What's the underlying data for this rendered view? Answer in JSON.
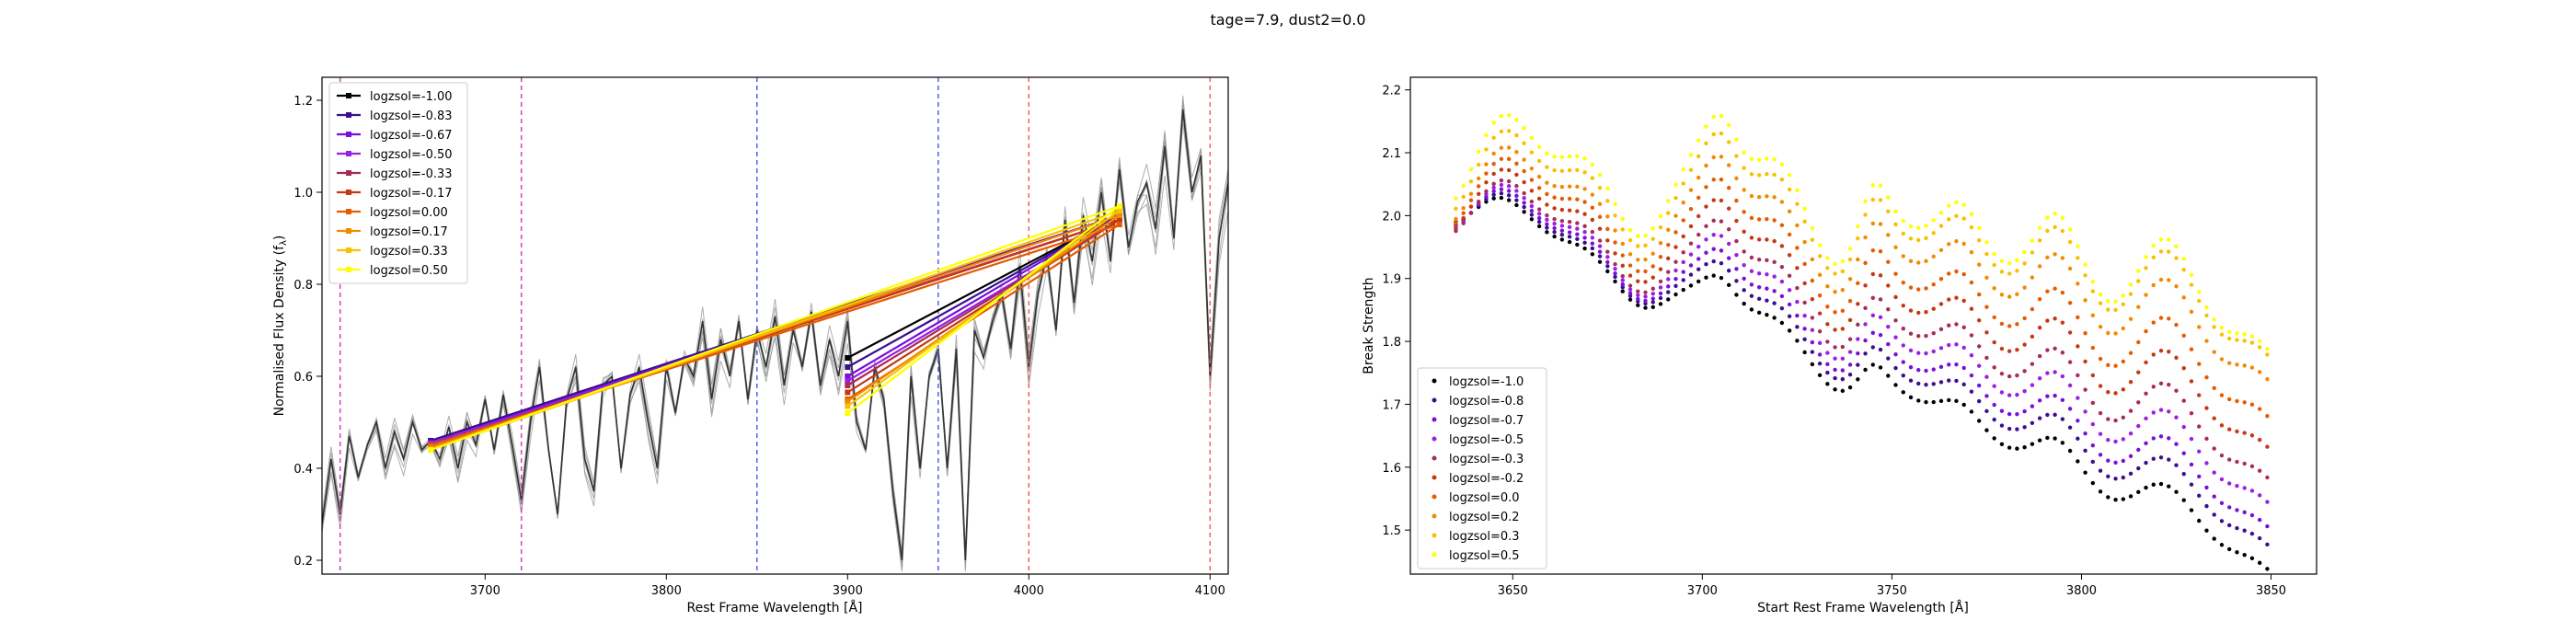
{
  "suptitle": "tage=7.9, dust2=0.0",
  "colors": {
    "palette": [
      "#000000",
      "#3b0f90",
      "#7a0fd8",
      "#9a20e0",
      "#a82b5a",
      "#c43814",
      "#e65a00",
      "#f08a00",
      "#f8c000",
      "#ffff00"
    ],
    "grey_spectra": "#9a9a9a",
    "dark_spectrum": "#333333",
    "vline_magenta": "#d040d0",
    "vline_blue": "#5060f0",
    "vline_red": "#f06060"
  },
  "chart_data": [
    {
      "type": "line",
      "title": "",
      "xlabel": "Rest Frame Wavelength [$\\AA$]",
      "xlabel_display": "Rest Frame Wavelength [Å]",
      "ylabel": "Normalised Flux Density ($f_\\lambda$)",
      "ylabel_display": "Normalised Flux Density (f",
      "ylabel_sub": "λ",
      "ylabel_tail": ")",
      "xlim": [
        3610,
        4110
      ],
      "ylim": [
        0.17,
        1.25
      ],
      "xticks": [
        3700,
        3800,
        3900,
        4000,
        4100
      ],
      "yticks": [
        0.2,
        0.4,
        0.6,
        0.8,
        1.0,
        1.2
      ],
      "xtick_labels": [
        "3700",
        "3800",
        "3900",
        "4000",
        "4100"
      ],
      "ytick_labels": [
        "0.2",
        "0.4",
        "0.6",
        "0.8",
        "1.0",
        "1.2"
      ],
      "legend_position": "upper-left",
      "vlines": [
        {
          "x": 3620,
          "color": "magenta"
        },
        {
          "x": 3720,
          "color": "magenta"
        },
        {
          "x": 3850,
          "color": "blue"
        },
        {
          "x": 3950,
          "color": "blue"
        },
        {
          "x": 4000,
          "color": "red"
        },
        {
          "x": 4100,
          "color": "red"
        }
      ],
      "spectrum_x": [
        3610,
        3615,
        3620,
        3625,
        3630,
        3635,
        3640,
        3645,
        3650,
        3655,
        3660,
        3665,
        3670,
        3675,
        3680,
        3685,
        3690,
        3695,
        3700,
        3705,
        3710,
        3715,
        3720,
        3725,
        3730,
        3735,
        3740,
        3745,
        3750,
        3755,
        3760,
        3765,
        3770,
        3775,
        3780,
        3785,
        3790,
        3795,
        3800,
        3805,
        3810,
        3815,
        3820,
        3825,
        3830,
        3835,
        3840,
        3845,
        3850,
        3855,
        3860,
        3865,
        3870,
        3875,
        3880,
        3885,
        3890,
        3895,
        3900,
        3905,
        3910,
        3915,
        3920,
        3925,
        3930,
        3935,
        3940,
        3945,
        3950,
        3955,
        3960,
        3965,
        3970,
        3975,
        3980,
        3985,
        3990,
        3995,
        4000,
        4005,
        4010,
        4015,
        4020,
        4025,
        4030,
        4035,
        4040,
        4045,
        4050,
        4055,
        4060,
        4065,
        4070,
        4075,
        4080,
        4085,
        4090,
        4095,
        4100,
        4105,
        4110
      ],
      "spectrum_y": [
        0.28,
        0.42,
        0.3,
        0.47,
        0.38,
        0.45,
        0.5,
        0.4,
        0.48,
        0.42,
        0.5,
        0.44,
        0.46,
        0.42,
        0.49,
        0.4,
        0.5,
        0.45,
        0.55,
        0.44,
        0.56,
        0.45,
        0.33,
        0.5,
        0.62,
        0.44,
        0.3,
        0.55,
        0.62,
        0.42,
        0.35,
        0.58,
        0.6,
        0.4,
        0.56,
        0.62,
        0.5,
        0.4,
        0.62,
        0.52,
        0.64,
        0.6,
        0.72,
        0.55,
        0.68,
        0.6,
        0.72,
        0.55,
        0.7,
        0.62,
        0.73,
        0.58,
        0.7,
        0.62,
        0.74,
        0.58,
        0.68,
        0.6,
        0.72,
        0.5,
        0.44,
        0.62,
        0.55,
        0.35,
        0.2,
        0.6,
        0.4,
        0.6,
        0.66,
        0.4,
        0.66,
        0.2,
        0.7,
        0.64,
        0.72,
        0.78,
        0.66,
        0.84,
        0.62,
        0.78,
        0.86,
        0.7,
        0.94,
        0.76,
        0.95,
        0.85,
        1.0,
        0.85,
        1.05,
        0.88,
        0.98,
        1.02,
        0.92,
        1.1,
        0.9,
        1.18,
        1.0,
        1.08,
        0.6,
        0.9,
        1.02
      ],
      "series": [
        {
          "name": "logzsol=-1.00",
          "points": [
            [
              3670,
              0.46
            ],
            [
              4050,
              0.95
            ],
            [
              3900,
              0.64
            ]
          ]
        },
        {
          "name": "logzsol=-0.83",
          "points": [
            [
              3670,
              0.46
            ],
            [
              4050,
              0.95
            ],
            [
              3900,
              0.62
            ]
          ]
        },
        {
          "name": "logzsol=-0.67",
          "points": [
            [
              3670,
              0.455
            ],
            [
              4050,
              0.95
            ],
            [
              3900,
              0.6
            ]
          ]
        },
        {
          "name": "logzsol=-0.50",
          "points": [
            [
              3670,
              0.455
            ],
            [
              4050,
              0.94
            ],
            [
              3900,
              0.59
            ]
          ]
        },
        {
          "name": "logzsol=-0.33",
          "points": [
            [
              3670,
              0.45
            ],
            [
              4050,
              0.94
            ],
            [
              3900,
              0.58
            ]
          ]
        },
        {
          "name": "logzsol=-0.17",
          "points": [
            [
              3670,
              0.45
            ],
            [
              4050,
              0.94
            ],
            [
              3900,
              0.565
            ]
          ]
        },
        {
          "name": "logzsol=0.00",
          "points": [
            [
              3670,
              0.45
            ],
            [
              4050,
              0.93
            ],
            [
              3900,
              0.55
            ]
          ]
        },
        {
          "name": "logzsol=0.17",
          "points": [
            [
              3670,
              0.445
            ],
            [
              4050,
              0.95
            ],
            [
              3900,
              0.545
            ]
          ]
        },
        {
          "name": "logzsol=0.33",
          "points": [
            [
              3670,
              0.44
            ],
            [
              4050,
              0.96
            ],
            [
              3900,
              0.535
            ]
          ]
        },
        {
          "name": "logzsol=0.50",
          "points": [
            [
              3670,
              0.44
            ],
            [
              4050,
              0.97
            ],
            [
              3900,
              0.52
            ]
          ]
        }
      ]
    },
    {
      "type": "scatter",
      "title": "",
      "xlabel": "Start Rest Frame Wavelength [$\\AA$]",
      "xlabel_display": "Start Rest Frame Wavelength [Å]",
      "ylabel": "Break Strength",
      "xlim": [
        3623,
        3862
      ],
      "ylim": [
        1.43,
        2.22
      ],
      "xticks": [
        3650,
        3700,
        3750,
        3800,
        3850
      ],
      "yticks": [
        1.5,
        1.6,
        1.7,
        1.8,
        1.9,
        2.0,
        2.1,
        2.2
      ],
      "xtick_labels": [
        "3650",
        "3700",
        "3750",
        "3800",
        "3850"
      ],
      "ytick_labels": [
        "1.5",
        "1.6",
        "1.7",
        "1.8",
        "1.9",
        "2.0",
        "2.1",
        "2.2"
      ],
      "legend_position": "lower-left",
      "x_range": [
        3635,
        3850
      ],
      "x_step": 2,
      "series": [
        {
          "name": "logzsol=-1.0",
          "start": 2.02,
          "end": 1.45,
          "bump": 0.0
        },
        {
          "name": "logzsol=-0.8",
          "start": 2.02,
          "end": 1.49,
          "bump": 0.005
        },
        {
          "name": "logzsol=-0.7",
          "start": 2.02,
          "end": 1.52,
          "bump": 0.01
        },
        {
          "name": "logzsol=-0.5",
          "start": 2.02,
          "end": 1.56,
          "bump": 0.015
        },
        {
          "name": "logzsol=-0.3",
          "start": 2.02,
          "end": 1.6,
          "bump": 0.02
        },
        {
          "name": "logzsol=-0.2",
          "start": 2.03,
          "end": 1.65,
          "bump": 0.025
        },
        {
          "name": "logzsol=0.0",
          "start": 2.04,
          "end": 1.7,
          "bump": 0.03
        },
        {
          "name": "logzsol=0.2",
          "start": 2.05,
          "end": 1.76,
          "bump": 0.035
        },
        {
          "name": "logzsol=0.3",
          "start": 2.07,
          "end": 1.8,
          "bump": 0.04
        },
        {
          "name": "logzsol=0.5",
          "start": 2.09,
          "end": 1.81,
          "bump": 0.045
        }
      ]
    }
  ]
}
